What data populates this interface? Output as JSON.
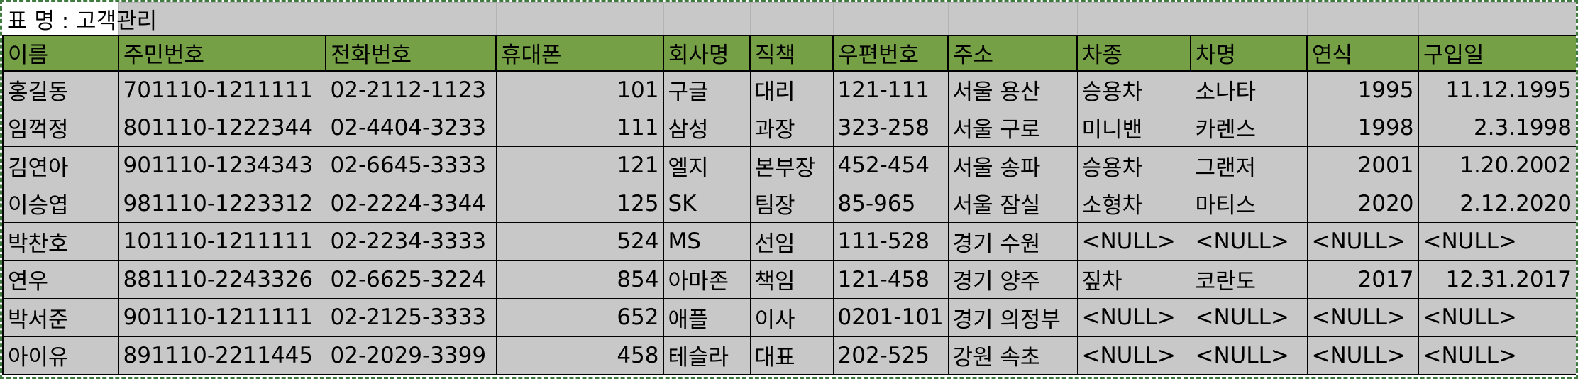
{
  "title": "표 명 : 고객관리",
  "columns": [
    "이름",
    "주민번호",
    "전화번호",
    "휴대폰",
    "회사명",
    "직책",
    "우편번호",
    "주소",
    "차종",
    "차명",
    "연식",
    "구입일"
  ],
  "rows": [
    [
      "홍길동",
      "701110-1211111",
      "02-2112-1123",
      "101",
      "구글",
      "대리",
      "121-111",
      "서울 용산",
      "승용차",
      "소나타",
      "1995",
      "11.12.1995"
    ],
    [
      "임꺽정",
      "801110-1222344",
      "02-4404-3233",
      "111",
      "삼성",
      "과장",
      "323-258",
      "서울 구로",
      "미니밴",
      "카렌스",
      "1998",
      "2.3.1998"
    ],
    [
      "김연아",
      "901110-1234343",
      "02-6645-3333",
      "121",
      "엘지",
      "본부장",
      "452-454",
      "서울 송파",
      "승용차",
      "그랜저",
      "2001",
      "1.20.2002"
    ],
    [
      "이승엽",
      "981110-1223312",
      "02-2224-3344",
      "125",
      "SK",
      "팀장",
      "85-965",
      "서울 잠실",
      "소형차",
      "마티스",
      "2020",
      "2.12.2020"
    ],
    [
      "박찬호",
      "101110-1211111",
      "02-2234-3333",
      "524",
      "MS",
      "선임",
      "111-528",
      "경기 수원",
      "<NULL>",
      "<NULL>",
      "<NULL>",
      "<NULL>"
    ],
    [
      "연우",
      "881110-2243326",
      "02-6625-3224",
      "854",
      "아마존",
      "책임",
      "121-458",
      "경기 양주",
      "짚차",
      "코란도",
      "2017",
      "12.31.2017"
    ],
    [
      "박서준",
      "901110-1211111",
      "02-2125-3333",
      "652",
      "애플",
      "이사",
      "0201-101",
      "경기 의정부",
      "<NULL>",
      "<NULL>",
      "<NULL>",
      "<NULL>"
    ],
    [
      "아이유",
      "891110-2211445",
      "02-2029-3399",
      "458",
      "테슬라",
      "대표",
      "202-525",
      "강원 속초",
      "<NULL>",
      "<NULL>",
      "<NULL>",
      "<NULL>"
    ]
  ]
}
